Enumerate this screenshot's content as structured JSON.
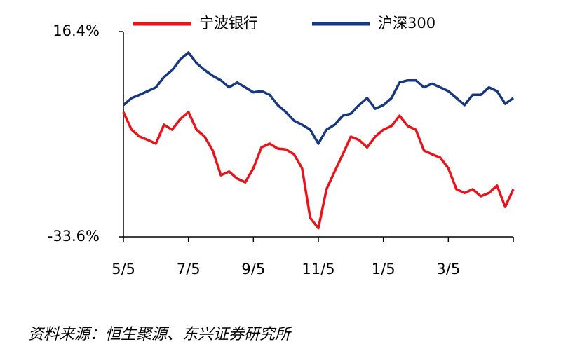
{
  "chart_data": {
    "type": "line",
    "categories": [
      "5/5",
      null,
      null,
      null,
      null,
      null,
      null,
      null,
      "7/5",
      null,
      null,
      null,
      null,
      null,
      null,
      null,
      "9/5",
      null,
      null,
      null,
      null,
      null,
      null,
      null,
      "11/5",
      null,
      null,
      null,
      null,
      null,
      null,
      null,
      "1/5",
      null,
      null,
      null,
      null,
      null,
      null,
      null,
      "3/5",
      null,
      null,
      null,
      null,
      null,
      null,
      null,
      null
    ],
    "series": [
      {
        "name": "宁波银行",
        "color": "#e8141c",
        "values": [
          -3.2,
          -7.5,
          -9.2,
          -10.0,
          -10.9,
          -6.3,
          -7.5,
          -4.9,
          -3.2,
          -7.5,
          -9.2,
          -12.6,
          -18.6,
          -17.7,
          -19.4,
          -20.3,
          -16.9,
          -11.8,
          -10.9,
          -12.1,
          -12.3,
          -13.5,
          -16.9,
          -29.0,
          -31.5,
          -22.0,
          -17.7,
          -13.5,
          -9.2,
          -10.0,
          -11.8,
          -9.2,
          -7.5,
          -6.6,
          -4.1,
          -6.6,
          -7.5,
          -12.6,
          -13.5,
          -14.3,
          -16.9,
          -22.0,
          -22.9,
          -22.0,
          -23.7,
          -22.9,
          -21.1,
          -26.3,
          -22.0
        ]
      },
      {
        "name": "沪深300",
        "color": "#17377f",
        "values": [
          -1.5,
          0.2,
          1.0,
          1.9,
          2.8,
          5.3,
          7.0,
          9.6,
          11.3,
          8.7,
          7.0,
          5.6,
          4.5,
          2.8,
          4.0,
          2.8,
          1.6,
          1.9,
          1.0,
          -1.5,
          -3.2,
          -5.3,
          -6.3,
          -7.5,
          -10.9,
          -7.5,
          -6.3,
          -4.1,
          -3.6,
          -1.5,
          0.2,
          -2.4,
          -1.5,
          0.2,
          4.0,
          4.5,
          4.5,
          2.8,
          3.7,
          2.8,
          1.9,
          0.2,
          -1.5,
          1.0,
          1.0,
          2.8,
          1.9,
          -1.2,
          0.2
        ]
      }
    ],
    "ylim": [
      -33.6,
      16.4
    ],
    "yticks": [
      {
        "value": -33.6,
        "label": "-33.6%"
      },
      {
        "value": 16.4,
        "label": "16.4%"
      }
    ],
    "grid": false,
    "legend": "top",
    "source": "资料来源：恒生聚源、东兴证券研究所"
  }
}
